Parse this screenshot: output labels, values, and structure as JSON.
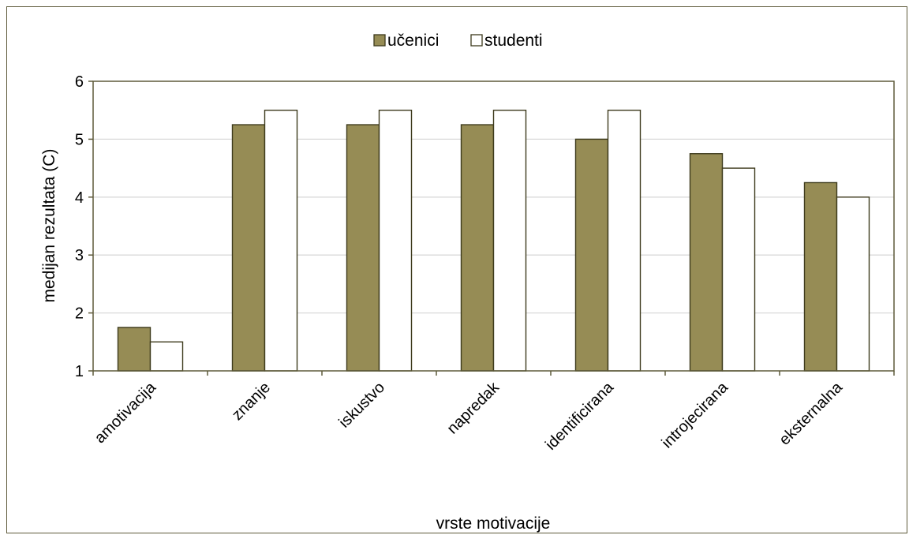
{
  "chart_data": {
    "type": "bar",
    "title": "",
    "xlabel": "vrste motivacije",
    "ylabel": "medijan rezultata (C)",
    "categories": [
      "amotivacija",
      "znanje",
      "iskustvo",
      "napredak",
      "identificirana",
      "introjecirana",
      "eksternalna"
    ],
    "series": [
      {
        "name": "učenici",
        "color": "#968c55",
        "values": [
          1.75,
          5.25,
          5.25,
          5.25,
          5.0,
          4.75,
          4.25
        ]
      },
      {
        "name": "studenti",
        "color": "#ffffff",
        "values": [
          1.5,
          5.5,
          5.5,
          5.5,
          5.5,
          4.5,
          4.0
        ]
      }
    ],
    "ylim": [
      1,
      6
    ],
    "yticks": [
      "1",
      "2",
      "3",
      "4",
      "5",
      "6"
    ],
    "grid": true,
    "legend_position": "top-center"
  }
}
